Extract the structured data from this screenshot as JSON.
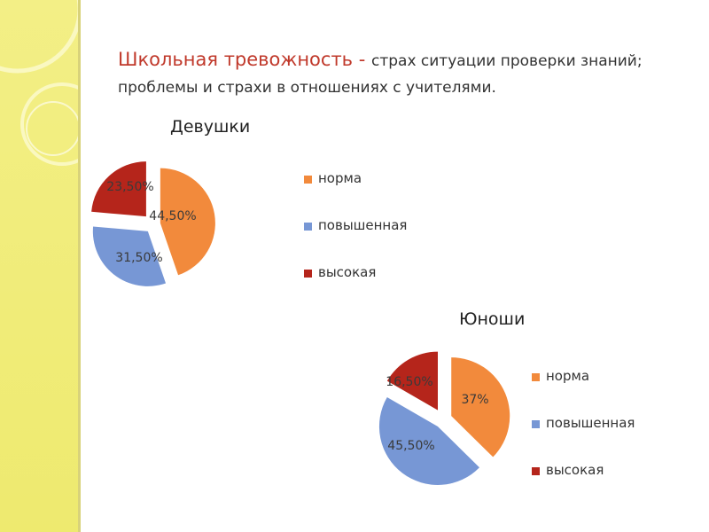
{
  "title": {
    "lead": "Школьная тревожность - ",
    "rest": "страх ситуации проверки знаний; проблемы и страхи в отношениях с учителями."
  },
  "colors": {
    "норма": "#f28a3c",
    "повышенная": "#7797d5",
    "высокая": "#b5251b"
  },
  "chart_data": [
    {
      "type": "pie",
      "title": "Девушки",
      "categories": [
        "норма",
        "повышенная",
        "высокая"
      ],
      "values": [
        44.5,
        31.5,
        23.5
      ],
      "labels": [
        "44,50%",
        "31,50%",
        "23,50%"
      ],
      "exploded": true,
      "legend": "right"
    },
    {
      "type": "pie",
      "title": "Юноши",
      "categories": [
        "норма",
        "повышенная",
        "высокая"
      ],
      "values": [
        37,
        45.5,
        16.5
      ],
      "labels": [
        "37%",
        "45,50%",
        "16,50%"
      ],
      "exploded": true,
      "legend": "right"
    }
  ]
}
